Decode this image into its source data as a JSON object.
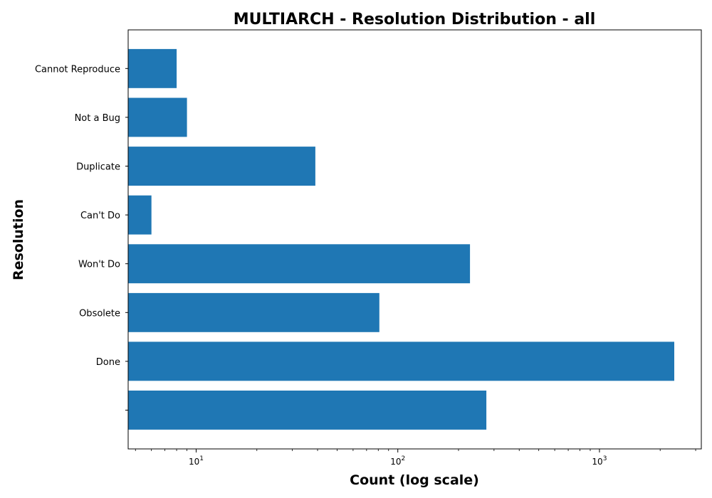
{
  "chart_data": {
    "type": "bar",
    "orientation": "horizontal",
    "title": "MULTIARCH - Resolution Distribution - all",
    "xlabel": "Count (log scale)",
    "ylabel": "Resolution",
    "xscale": "log",
    "xlim": [
      4.6,
      3200
    ],
    "x_ticks": [
      {
        "value": 10,
        "base": "10",
        "exp": "1"
      },
      {
        "value": 100,
        "base": "10",
        "exp": "2"
      },
      {
        "value": 1000,
        "base": "10",
        "exp": "3"
      }
    ],
    "categories": [
      "",
      "Done",
      "Obsolete",
      "Won't Do",
      "Can't Do",
      "Duplicate",
      "Not a Bug",
      "Cannot Reproduce"
    ],
    "values": [
      275,
      2350,
      81,
      228,
      6,
      39,
      9,
      8
    ],
    "bar_color": "#1f77b4",
    "grid": false
  }
}
